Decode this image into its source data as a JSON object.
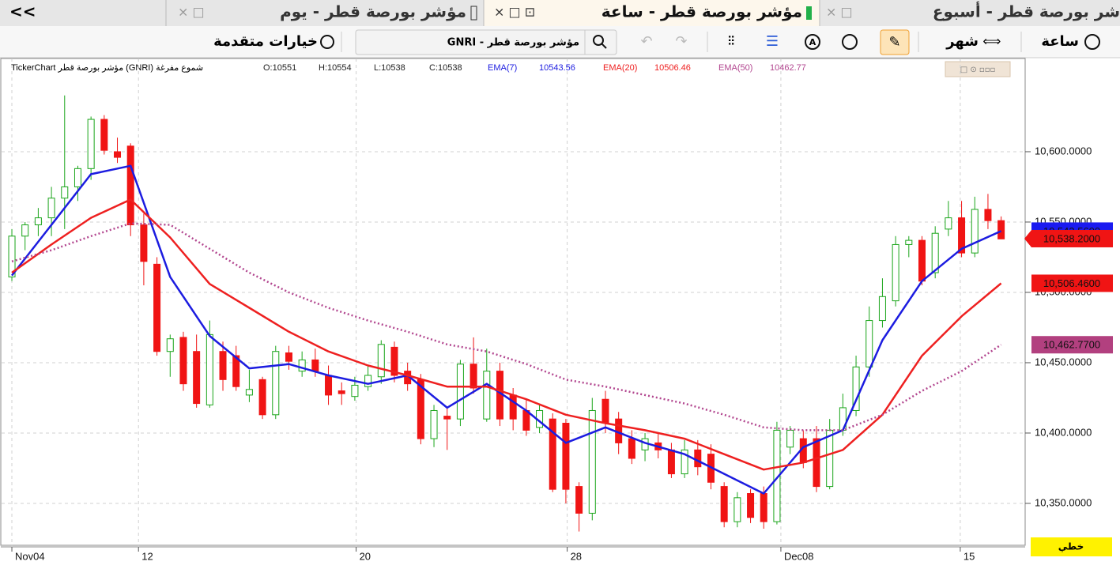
{
  "tabs": [
    "<<",
    "مؤشر بورصة قطر - يوم",
    "مؤشر بورصة قطر - ساعة",
    "شر بورصة قطر - أسبوع"
  ],
  "toolbar": {
    "hour": "ساعة",
    "month": "شهر",
    "search": "GNRI - مؤشر بورصة قطر",
    "advanced": "خيارات متقدمة"
  },
  "chart_type_button": "خطي",
  "chart_data": {
    "type": "candlestick",
    "title": "TickerChart مؤشر بورصة قطر (GNRI) شموع مفرغة",
    "ohlc_labels": [
      {
        "value": 10551,
        "label": "O:10551"
      },
      {
        "value": 10554,
        "label": "H:10554"
      },
      {
        "value": 10538,
        "label": "L:10538"
      },
      {
        "value": 10538,
        "label": "C:10538"
      }
    ],
    "x": [
      0,
      1,
      2,
      3,
      4,
      5,
      6,
      7,
      8,
      9,
      10,
      11,
      12,
      13,
      14,
      15,
      16,
      17,
      18,
      19,
      20,
      21,
      22,
      23,
      24,
      25,
      26,
      27,
      28,
      29,
      30,
      31,
      32,
      33,
      34,
      35,
      36,
      37,
      38,
      39,
      40,
      41,
      42,
      43,
      44,
      45,
      46,
      47,
      48,
      49,
      50,
      51,
      52,
      53,
      54,
      55,
      56,
      57,
      58,
      59,
      60,
      61,
      62,
      63,
      64,
      65,
      66,
      67,
      68,
      69,
      70,
      71,
      72,
      73,
      74,
      75
    ],
    "open": [
      10511,
      10540,
      10548,
      10553,
      10567,
      10575,
      10588,
      10623,
      10600,
      10604,
      10548,
      10520,
      10458,
      10468,
      10458,
      10420,
      10458,
      10455,
      10427,
      10438,
      10413,
      10457,
      10444,
      10452,
      10441,
      10430,
      10426,
      10433,
      10440,
      10461,
      10444,
      10438,
      10396,
      10412,
      10410,
      10449,
      10410,
      10444,
      10427,
      10416,
      10404,
      10410,
      10407,
      10362,
      10343,
      10424,
      10410,
      10396,
      10388,
      10393,
      10388,
      10371,
      10388,
      10385,
      10362,
      10337,
      10357,
      10357,
      10337,
      10390,
      10396,
      10396,
      10362,
      10402,
      10416,
      10447,
      10480,
      10494,
      10534,
      10537,
      10514,
      10545,
      10553,
      10528,
      10559,
      10551
    ],
    "high": [
      10545,
      10550,
      10560,
      10575,
      10640,
      10590,
      10625,
      10626,
      10610,
      10606,
      10556,
      10525,
      10470,
      10472,
      10470,
      10480,
      10465,
      10462,
      10445,
      10440,
      10462,
      10462,
      10458,
      10460,
      10448,
      10436,
      10440,
      10448,
      10466,
      10465,
      10450,
      10442,
      10420,
      10418,
      10452,
      10468,
      10460,
      10450,
      10432,
      10424,
      10420,
      10414,
      10410,
      10365,
      10425,
      10430,
      10415,
      10402,
      10400,
      10400,
      10393,
      10395,
      10395,
      10392,
      10365,
      10358,
      10360,
      10362,
      10408,
      10405,
      10402,
      10405,
      10410,
      10428,
      10455,
      10490,
      10510,
      10540,
      10540,
      10540,
      10547,
      10565,
      10565,
      10568,
      10570,
      10554
    ],
    "low": [
      10508,
      10530,
      10540,
      10540,
      10545,
      10565,
      10580,
      10598,
      10592,
      10540,
      10505,
      10455,
      10440,
      10430,
      10418,
      10418,
      10430,
      10430,
      10422,
      10410,
      10410,
      10445,
      10440,
      10440,
      10420,
      10420,
      10423,
      10430,
      10435,
      10436,
      10430,
      10392,
      10390,
      10388,
      10405,
      10428,
      10408,
      10405,
      10402,
      10398,
      10400,
      10358,
      10350,
      10330,
      10338,
      10400,
      10385,
      10378,
      10380,
      10382,
      10368,
      10368,
      10370,
      10360,
      10333,
      10333,
      10336,
      10332,
      10335,
      10385,
      10375,
      10358,
      10360,
      10398,
      10412,
      10440,
      10475,
      10490,
      10525,
      10505,
      10510,
      10540,
      10525,
      10525,
      10545,
      10538
    ],
    "close": [
      10540,
      10548,
      10553,
      10567,
      10575,
      10588,
      10623,
      10601,
      10596,
      10548,
      10522,
      10458,
      10467,
      10435,
      10421,
      10470,
      10438,
      10433,
      10431,
      10413,
      10458,
      10451,
      10452,
      10444,
      10427,
      10428,
      10434,
      10441,
      10463,
      10441,
      10435,
      10396,
      10416,
      10410,
      10449,
      10432,
      10444,
      10410,
      10410,
      10402,
      10416,
      10360,
      10360,
      10343,
      10416,
      10407,
      10393,
      10382,
      10396,
      10388,
      10371,
      10388,
      10376,
      10365,
      10337,
      10354,
      10340,
      10337,
      10402,
      10402,
      10379,
      10362,
      10402,
      10418,
      10447,
      10480,
      10497,
      10534,
      10537,
      10508,
      10542,
      10553,
      10528,
      10559,
      10551,
      10538
    ],
    "up_color": "#1aa51a",
    "down_color": "#f01414",
    "series": [
      {
        "name": "EMA(7)",
        "color": "#1c1ce0",
        "x": [
          0,
          3,
          6,
          9,
          12,
          15,
          18,
          21,
          24,
          27,
          30,
          33,
          36,
          39,
          42,
          45,
          48,
          51,
          54,
          57,
          60,
          63,
          66,
          69,
          72,
          75
        ],
        "values": [
          10512,
          10548,
          10584,
          10590,
          10511,
          10469,
          10446,
          10449,
          10441,
          10435,
          10441,
          10418,
          10435,
          10416,
          10393,
          10404,
          10393,
          10385,
          10371,
          10357,
          10390,
          10402,
          10466,
          10508,
          10531,
          10543.56
        ]
      },
      {
        "name": "EMA(20)",
        "color": "#ee2020",
        "x": [
          0,
          3,
          6,
          9,
          12,
          15,
          18,
          21,
          24,
          27,
          30,
          33,
          36,
          39,
          42,
          45,
          48,
          51,
          54,
          57,
          60,
          63,
          66,
          69,
          72,
          75
        ],
        "values": [
          10514,
          10534,
          10553,
          10566,
          10539,
          10506,
          10489,
          10472,
          10458,
          10448,
          10441,
          10433,
          10433,
          10424,
          10413,
          10407,
          10402,
          10396,
          10385,
          10374,
          10379,
          10388,
          10413,
          10455,
          10483,
          10506.46
        ]
      },
      {
        "name": "EMA(50)",
        "color": "#b2468f",
        "dotted": true,
        "x": [
          0,
          3,
          6,
          9,
          12,
          15,
          18,
          21,
          24,
          27,
          30,
          33,
          36,
          39,
          42,
          45,
          48,
          51,
          54,
          57,
          60,
          63,
          66,
          69,
          72,
          75
        ],
        "values": [
          10522,
          10530,
          10540,
          10549,
          10548,
          10531,
          10514,
          10500,
          10489,
          10480,
          10472,
          10463,
          10458,
          10449,
          10438,
          10433,
          10427,
          10421,
          10413,
          10404,
          10402,
          10402,
          10413,
          10430,
          10444,
          10462.77
        ]
      }
    ],
    "xlim": [
      -0.9,
      76.7
    ],
    "xticks": [
      {
        "value": 0,
        "label": "Nov04"
      },
      {
        "value": 9.6,
        "label": "12"
      },
      {
        "value": 26.1,
        "label": "20"
      },
      {
        "value": 42.1,
        "label": "28"
      },
      {
        "value": 58.3,
        "label": "Dec08"
      },
      {
        "value": 71.9,
        "label": "15"
      }
    ],
    "ylim": [
      10320.2,
      10667.4
    ],
    "yticks": [
      {
        "value": 10350,
        "label": "10,350.0000"
      },
      {
        "value": 10400,
        "label": "10,400.0000"
      },
      {
        "value": 10450,
        "label": "10,450.0000"
      },
      {
        "value": 10500,
        "label": "10,500.0000"
      },
      {
        "value": 10550,
        "label": "10,550.0000"
      },
      {
        "value": 10600,
        "label": "10,600.0000"
      }
    ],
    "grid": true,
    "price_labels": [
      {
        "value": 10543.56,
        "label": "10,543.5600",
        "color": "#1a1af0"
      },
      {
        "value": 10538.2,
        "label": "10,538.2000",
        "color": "#f01414",
        "arrow": true
      },
      {
        "value": 10506.46,
        "label": "10,506.4600",
        "color": "#f01414"
      },
      {
        "value": 10462.77,
        "label": "10,462.7700",
        "color": "#b2407f"
      }
    ]
  }
}
